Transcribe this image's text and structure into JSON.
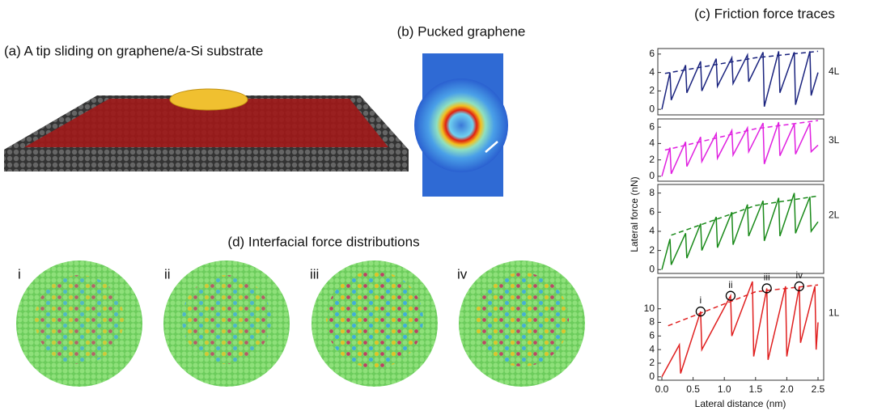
{
  "panel_a": {
    "title": "(a) A tip sliding on graphene/a-Si substrate"
  },
  "panel_b": {
    "title": "(b) Pucked graphene"
  },
  "panel_c": {
    "title": "(c) Friction force traces",
    "x_label": "Lateral distance (nm)",
    "y_label": "Lateral force (nN)"
  },
  "panel_d": {
    "title": "(d) Interfacial force distributions",
    "labels": [
      "i",
      "ii",
      "iii",
      "iv"
    ]
  },
  "chart_data": [
    {
      "type": "line",
      "label": "4L",
      "color": "#1a237e",
      "xlim": [
        0,
        2.5
      ],
      "ylim": [
        -0.6,
        6.6
      ],
      "yticks": [
        0,
        2,
        4,
        6
      ],
      "x": [
        0,
        0.13,
        0.15,
        0.38,
        0.4,
        0.62,
        0.64,
        0.87,
        0.89,
        1.12,
        1.14,
        1.37,
        1.39,
        1.62,
        1.64,
        1.87,
        1.89,
        2.12,
        2.14,
        2.37,
        2.39,
        2.5
      ],
      "values": [
        0,
        4,
        1,
        4.8,
        1.8,
        5.2,
        2,
        5.5,
        2.5,
        5.6,
        2.8,
        5.9,
        3,
        6.2,
        0.3,
        6.3,
        1.8,
        6.2,
        0.5,
        6.3,
        1.5,
        4
      ],
      "envelope": {
        "x": [
          0.05,
          1.5,
          2.5
        ],
        "values": [
          3.9,
          5.6,
          6.3
        ]
      }
    },
    {
      "type": "line",
      "label": "3L",
      "color": "#e020e0",
      "xlim": [
        0,
        2.5
      ],
      "ylim": [
        -0.6,
        7
      ],
      "yticks": [
        0,
        2,
        4,
        6
      ],
      "x": [
        0,
        0.13,
        0.15,
        0.38,
        0.4,
        0.62,
        0.64,
        0.87,
        0.89,
        1.12,
        1.14,
        1.37,
        1.39,
        1.62,
        1.64,
        1.87,
        1.89,
        2.12,
        2.14,
        2.37,
        2.39,
        2.5
      ],
      "values": [
        0,
        3.5,
        0.3,
        4.2,
        1.2,
        4.8,
        1.8,
        5.2,
        2.2,
        5.6,
        2.6,
        5.9,
        3,
        6.5,
        1.5,
        6.6,
        2.5,
        6.4,
        2.7,
        6.5,
        3,
        3.8
      ],
      "envelope": {
        "x": [
          0.05,
          1.5,
          2.5
        ],
        "values": [
          3.2,
          5.8,
          6.8
        ]
      }
    },
    {
      "type": "line",
      "label": "2L",
      "color": "#1a8a1a",
      "xlim": [
        0,
        2.5
      ],
      "ylim": [
        -0.4,
        8.9
      ],
      "yticks": [
        0,
        2,
        4,
        6,
        8
      ],
      "x": [
        0,
        0.13,
        0.15,
        0.38,
        0.4,
        0.62,
        0.64,
        0.87,
        0.89,
        1.12,
        1.14,
        1.37,
        1.39,
        1.62,
        1.64,
        1.87,
        1.89,
        2.12,
        2.14,
        2.37,
        2.39,
        2.5
      ],
      "values": [
        0,
        3.2,
        0.5,
        3.8,
        1.2,
        4.8,
        2,
        5.5,
        2.3,
        6,
        2.6,
        6.8,
        3.5,
        7.2,
        3,
        7.5,
        3.5,
        8,
        3.8,
        7.6,
        4,
        5
      ],
      "envelope": {
        "x": [
          0.15,
          1.5,
          2.5
        ],
        "values": [
          3.6,
          6.7,
          7.7
        ]
      }
    },
    {
      "type": "line",
      "label": "1L",
      "color": "#e02020",
      "xlim": [
        0,
        2.5
      ],
      "ylim": [
        -0.5,
        14.6
      ],
      "yticks": [
        0,
        2,
        4,
        6,
        8,
        10
      ],
      "xticks": [
        {
          "value": 0,
          "label": "0.0"
        },
        0.5,
        {
          "value": 1,
          "label": "1.0"
        },
        1.5,
        {
          "value": 2,
          "label": "2.0"
        },
        2.5
      ],
      "x": [
        0,
        0.28,
        0.3,
        0.62,
        0.64,
        1.1,
        1.12,
        1.45,
        1.47,
        1.68,
        1.7,
        1.98,
        2,
        2.2,
        2.22,
        2.45,
        2.47,
        2.5
      ],
      "values": [
        0,
        4.7,
        0.5,
        9.6,
        4,
        11.9,
        6,
        14,
        3,
        13,
        2.5,
        13.3,
        3,
        13.3,
        5,
        13.3,
        4,
        8
      ],
      "envelope": {
        "x": [
          0.1,
          1.5,
          2.5
        ],
        "values": [
          7.5,
          12.5,
          13.5
        ]
      },
      "annotations": [
        {
          "label": "i",
          "x": 0.62,
          "y": 9.6
        },
        {
          "label": "ii",
          "x": 1.1,
          "y": 11.9
        },
        {
          "label": "iii",
          "x": 1.68,
          "y": 13
        },
        {
          "label": "iv",
          "x": 2.2,
          "y": 13.3
        }
      ]
    }
  ]
}
